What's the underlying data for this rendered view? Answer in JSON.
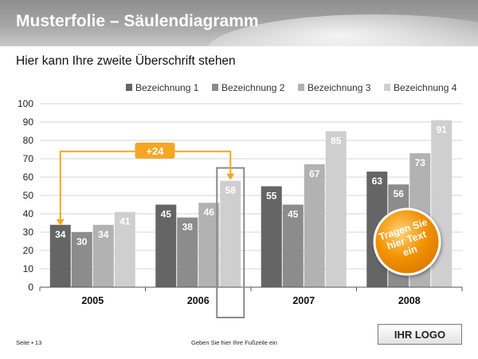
{
  "slide": {
    "title": "Musterfolie – Säulendiagramm",
    "subtitle": "Hier kann Ihre zweite Überschrift stehen",
    "footer_page": "Seite ▪ 13",
    "footer_text": "Geben Sie hier Ihre Fußzeile ein",
    "logo_text": "IHR LOGO"
  },
  "colors": {
    "series": [
      "#656565",
      "#8c8c8c",
      "#b2b2b2",
      "#cfcfcf"
    ],
    "callout": "#f5a623",
    "badge": "#f39200"
  },
  "chart_data": {
    "type": "bar",
    "categories": [
      "2005",
      "2006",
      "2007",
      "2008"
    ],
    "series": [
      {
        "name": "Bezeichnung 1",
        "values": [
          34,
          45,
          55,
          63
        ]
      },
      {
        "name": "Bezeichnung 2",
        "values": [
          30,
          38,
          45,
          56
        ]
      },
      {
        "name": "Bezeichnung 3",
        "values": [
          34,
          46,
          67,
          73
        ]
      },
      {
        "name": "Bezeichnung 4",
        "values": [
          41,
          58,
          85,
          91
        ]
      }
    ],
    "title": "",
    "xlabel": "",
    "ylabel": "",
    "ylim": [
      0,
      100
    ],
    "yticks": [
      0,
      10,
      20,
      30,
      40,
      50,
      60,
      70,
      80,
      90,
      100
    ],
    "grid": true,
    "legend": "top-right",
    "annotations": {
      "difference_label": "+24",
      "difference_from": {
        "category": "2005",
        "series": "Bezeichnung 1"
      },
      "difference_to": {
        "category": "2006",
        "series": "Bezeichnung 4"
      },
      "highlight": {
        "category": "2006",
        "series": "Bezeichnung 4"
      },
      "badge_lines": [
        "Tragen Sie",
        "hier Text",
        "ein"
      ]
    }
  }
}
